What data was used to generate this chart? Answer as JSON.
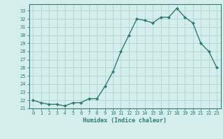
{
  "x": [
    0,
    1,
    2,
    3,
    4,
    5,
    6,
    7,
    8,
    9,
    10,
    11,
    12,
    13,
    14,
    15,
    16,
    17,
    18,
    19,
    20,
    21,
    22,
    23
  ],
  "y": [
    22.0,
    21.7,
    21.5,
    21.5,
    21.3,
    21.7,
    21.7,
    22.2,
    22.2,
    23.7,
    25.5,
    28.0,
    30.0,
    32.0,
    31.8,
    31.5,
    32.2,
    32.2,
    33.3,
    32.2,
    31.5,
    29.0,
    28.0,
    26.0
  ],
  "line_color": "#2e7d6e",
  "marker_color": "#2e7d6e",
  "bg_color": "#d4eeeb",
  "grid_color": "#aed4cf",
  "axis_color": "#2e7d6e",
  "xlabel": "Humidex (Indice chaleur)",
  "xlim": [
    -0.5,
    23.5
  ],
  "ylim": [
    21.0,
    33.8
  ],
  "yticks": [
    21,
    22,
    23,
    24,
    25,
    26,
    27,
    28,
    29,
    30,
    31,
    32,
    33
  ],
  "xticks": [
    0,
    1,
    2,
    3,
    4,
    5,
    6,
    7,
    8,
    9,
    10,
    11,
    12,
    13,
    14,
    15,
    16,
    17,
    18,
    19,
    20,
    21,
    22,
    23
  ]
}
